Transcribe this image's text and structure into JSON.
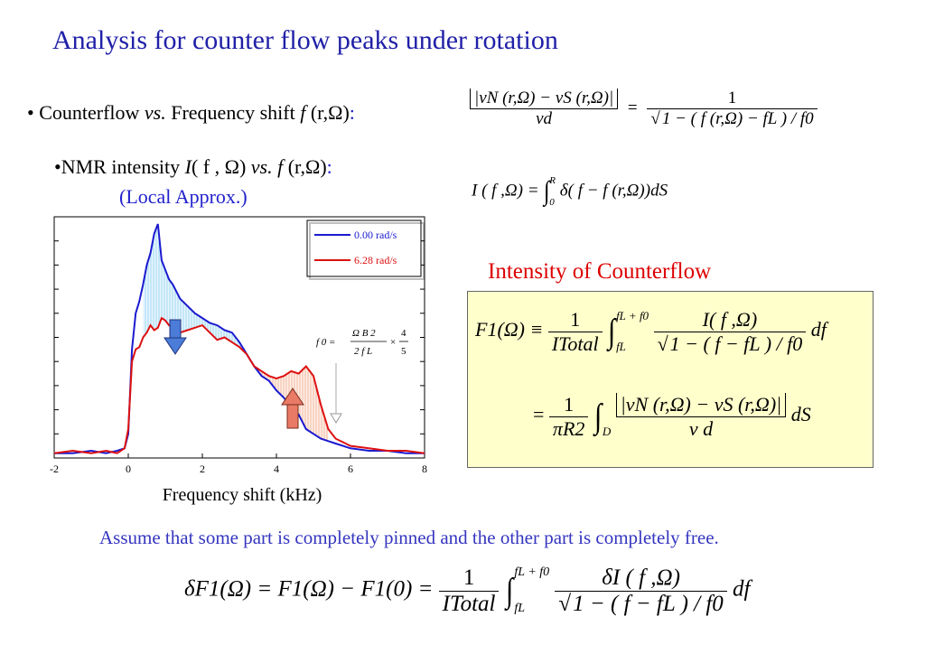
{
  "title": "Analysis for counter flow peaks under rotation",
  "bullet1": {
    "lead": "• Counterflow ",
    "vs": "vs.",
    "rest": " Frequency shift  ",
    "func": "f",
    "args": " (r,Ω)",
    "colon": ":"
  },
  "bullet2": {
    "lead": "•NMR intensity ",
    "I": "I",
    "args": "( f , Ω) ",
    "vs": "vs.",
    "f": " f",
    "args2": " (r,Ω)",
    "colon": ":"
  },
  "local_approx": "(Local Approx.)",
  "eq1": {
    "num": "|vN (r,Ω) − vS (r,Ω)|",
    "den": "vd",
    "eq": "=",
    "rnum": "1",
    "rden": "1 − ( f (r,Ω) − fL ) / f0"
  },
  "eq2": {
    "lhs": "I ( f ,Ω) =",
    "upper": "R",
    "lower": "0",
    "body": "δ( f − f (r,Ω))dS"
  },
  "intensity_heading": "Intensity of Counterflow",
  "box": {
    "line1_lhs": "F1(Ω) ≡",
    "line1_frac_num": "1",
    "line1_frac_den": "ITotal",
    "line1_upper": "fL + f0",
    "line1_lower": "fL",
    "line1_num": "I( f ,Ω)",
    "line1_den": "1 − ( f − fL ) / f0",
    "line1_tail": "df",
    "line2_eq": "=",
    "line2_frac_num": "1",
    "line2_frac_den": "πR2",
    "line2_lower": "D",
    "line2_num": "|vN (r,Ω) − vS (r,Ω)|",
    "line2_den": "v d",
    "line2_tail": "dS"
  },
  "assume": "Assume that some part is completely pinned and the other part is completely free.",
  "bottom_eq": {
    "lhs": "δF1(Ω) = F1(Ω) − F1(0) =",
    "frac_num": "1",
    "frac_den": "ITotal",
    "upper": "fL + f0",
    "lower": "fL",
    "num": "δI ( f ,Ω)",
    "den": "1 − ( f − fL ) / f0",
    "tail": "df"
  },
  "chart_note": {
    "lhs": "f 0 =",
    "num": "Ω B 2",
    "den": "2 f L",
    "times": "×",
    "rnum": "4",
    "rden": "5"
  },
  "chart_data": {
    "type": "line",
    "xlabel": "Frequency shift (kHz)",
    "ylabel": "",
    "xlim": [
      -2,
      8
    ],
    "ylim": [
      0,
      1.0
    ],
    "xticks": [
      "-2",
      "0",
      "2",
      "4",
      "6",
      "8"
    ],
    "legend_position": "top-right",
    "grid": false,
    "series": [
      {
        "name": "0.00 rad/s",
        "color": "#1a1ad0",
        "x": [
          -2.0,
          -1.5,
          -1.0,
          -0.6,
          -0.3,
          -0.1,
          0.0,
          0.1,
          0.2,
          0.3,
          0.4,
          0.5,
          0.6,
          0.7,
          0.8,
          0.9,
          1.0,
          1.1,
          1.2,
          1.4,
          1.6,
          1.8,
          2.0,
          2.2,
          2.4,
          2.6,
          2.8,
          3.0,
          3.2,
          3.4,
          3.6,
          3.8,
          4.0,
          4.2,
          4.4,
          4.6,
          4.8,
          5.0,
          5.2,
          5.4,
          5.6,
          6.0,
          6.5,
          7.0,
          7.5,
          8.0
        ],
        "y": [
          0.02,
          0.02,
          0.03,
          0.02,
          0.03,
          0.04,
          0.1,
          0.45,
          0.6,
          0.65,
          0.72,
          0.8,
          0.85,
          0.93,
          0.97,
          0.82,
          0.78,
          0.74,
          0.72,
          0.66,
          0.63,
          0.6,
          0.58,
          0.56,
          0.55,
          0.53,
          0.52,
          0.48,
          0.43,
          0.38,
          0.34,
          0.32,
          0.28,
          0.25,
          0.21,
          0.18,
          0.12,
          0.1,
          0.08,
          0.07,
          0.06,
          0.04,
          0.03,
          0.03,
          0.02,
          0.02
        ]
      },
      {
        "name": "6.28 rad/s",
        "color": "#dd1111",
        "x": [
          -2.0,
          -1.5,
          -1.0,
          -0.6,
          -0.3,
          -0.1,
          0.0,
          0.1,
          0.2,
          0.3,
          0.4,
          0.5,
          0.6,
          0.7,
          0.8,
          0.9,
          1.0,
          1.1,
          1.2,
          1.4,
          1.6,
          1.8,
          2.0,
          2.2,
          2.4,
          2.6,
          2.8,
          3.0,
          3.2,
          3.4,
          3.6,
          3.8,
          4.0,
          4.2,
          4.4,
          4.6,
          4.8,
          5.0,
          5.2,
          5.4,
          5.6,
          6.0,
          6.5,
          7.0,
          7.5,
          8.0
        ],
        "y": [
          0.02,
          0.03,
          0.02,
          0.03,
          0.02,
          0.04,
          0.12,
          0.4,
          0.45,
          0.46,
          0.5,
          0.52,
          0.55,
          0.53,
          0.54,
          0.58,
          0.57,
          0.55,
          0.54,
          0.52,
          0.53,
          0.54,
          0.55,
          0.52,
          0.49,
          0.5,
          0.48,
          0.46,
          0.43,
          0.38,
          0.36,
          0.34,
          0.33,
          0.34,
          0.36,
          0.35,
          0.38,
          0.34,
          0.22,
          0.12,
          0.08,
          0.05,
          0.04,
          0.03,
          0.03,
          0.02
        ]
      }
    ]
  }
}
